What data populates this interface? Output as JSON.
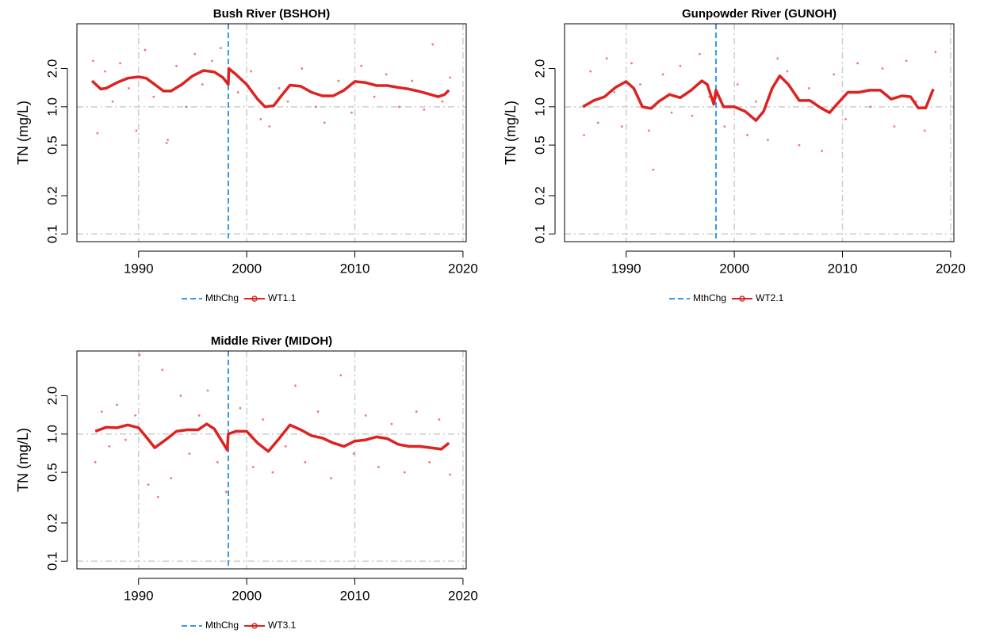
{
  "chart_data": [
    {
      "type": "line",
      "title": "Bush River (BSHOH)",
      "y_label": "TN (mg/L)",
      "log_y": true,
      "xlim": [
        1984.3,
        2020.3
      ],
      "ylim": [
        0.087,
        4.5
      ],
      "xticks": [
        1990,
        2000,
        2010,
        2020
      ],
      "yticks": [
        0.1,
        0.2,
        0.5,
        {
          "value": 1,
          "label": "1.0"
        },
        {
          "value": 2,
          "label": "2.0"
        }
      ],
      "x_grid": true,
      "y_grid": [
        0.1,
        1
      ],
      "series": [
        {
          "name": "MthChg",
          "color": "#3399ee",
          "style": "vline",
          "x": [
            1998.3
          ]
        },
        {
          "name": "WT1.1",
          "color": "#dd2222",
          "x": [
            1985.7,
            1986.5,
            1987,
            1988,
            1989,
            1990,
            1990.7,
            1991.5,
            1992.3,
            1993,
            1994,
            1995,
            1996,
            1997,
            1997.8,
            1998.3,
            1998.35,
            1999,
            2000,
            2001,
            2001.7,
            2002.5,
            2003.3,
            2004,
            2005,
            2006,
            2007,
            2008,
            2009,
            2010,
            2011,
            2012,
            2013,
            2014,
            2015,
            2016,
            2017,
            2017.7,
            2018.3,
            2018.7
          ],
          "values": [
            1.6,
            1.38,
            1.4,
            1.55,
            1.68,
            1.72,
            1.68,
            1.5,
            1.33,
            1.33,
            1.5,
            1.75,
            1.93,
            1.88,
            1.7,
            1.5,
            2.0,
            1.8,
            1.5,
            1.15,
            1.0,
            1.02,
            1.25,
            1.48,
            1.45,
            1.3,
            1.22,
            1.22,
            1.35,
            1.58,
            1.55,
            1.47,
            1.47,
            1.42,
            1.38,
            1.32,
            1.25,
            1.2,
            1.25,
            1.35
          ],
          "points": {
            "x": [
              1985.8,
              1986.2,
              1986.9,
              1987.6,
              1988.3,
              1989.1,
              1989.8,
              1990.6,
              1991.4,
              1992.6,
              1992.7,
              1993.5,
              1994.4,
              1995.2,
              1995.9,
              1996.8,
              1997.6,
              1999.2,
              2000.4,
              2001.3,
              2002.1,
              2003.0,
              2003.8,
              2005.1,
              2006.4,
              2007.2,
              2008.5,
              2009.7,
              2010.6,
              2011.8,
              2012.9,
              2014.1,
              2015.3,
              2016.4,
              2017.2,
              2018.1,
              2018.8
            ],
            "values": [
              2.3,
              0.62,
              1.9,
              1.1,
              2.2,
              1.4,
              0.65,
              2.8,
              1.2,
              0.52,
              0.55,
              2.1,
              1.0,
              2.6,
              1.5,
              2.3,
              2.9,
              1.3,
              1.9,
              0.8,
              0.7,
              1.4,
              1.1,
              2.0,
              1.0,
              0.75,
              1.6,
              0.9,
              2.1,
              1.2,
              1.8,
              1.0,
              1.6,
              0.95,
              3.1,
              1.1,
              1.7
            ]
          }
        }
      ]
    },
    {
      "type": "line",
      "title": "Gunpowder River (GUNOH)",
      "y_label": "TN (mg/L)",
      "log_y": true,
      "xlim": [
        1984.3,
        2020.3
      ],
      "ylim": [
        0.087,
        4.5
      ],
      "xticks": [
        1990,
        2000,
        2010,
        2020
      ],
      "yticks": [
        0.1,
        0.2,
        0.5,
        {
          "value": 1,
          "label": "1.0"
        },
        {
          "value": 2,
          "label": "2.0"
        }
      ],
      "x_grid": true,
      "y_grid": [
        0.1,
        1
      ],
      "series": [
        {
          "name": "MthChg",
          "color": "#3399ee",
          "style": "vline",
          "x": [
            1998.3
          ]
        },
        {
          "name": "WT2.1",
          "color": "#dd2222",
          "x": [
            1986,
            1987,
            1988,
            1989,
            1990,
            1990.7,
            1991.5,
            1992.3,
            1993,
            1994,
            1995,
            1996,
            1997,
            1997.5,
            1998.1,
            1998.3,
            1999,
            2000,
            2001,
            2002,
            2002.7,
            2003.5,
            2004.2,
            2005,
            2006,
            2007,
            2008,
            2008.8,
            2009.5,
            2010.5,
            2011.5,
            2012.5,
            2013.5,
            2014.5,
            2015.5,
            2016.3,
            2017,
            2017.7,
            2018.4
          ],
          "values": [
            1.0,
            1.12,
            1.2,
            1.42,
            1.58,
            1.4,
            1.0,
            0.97,
            1.1,
            1.25,
            1.18,
            1.35,
            1.6,
            1.5,
            1.05,
            1.35,
            1.0,
            1.0,
            0.92,
            0.78,
            0.92,
            1.4,
            1.75,
            1.5,
            1.12,
            1.12,
            0.98,
            0.9,
            1.05,
            1.3,
            1.3,
            1.35,
            1.35,
            1.15,
            1.22,
            1.2,
            0.98,
            0.98,
            1.38
          ],
          "points": {
            "x": [
              1986.1,
              1986.7,
              1987.4,
              1988.2,
              1988.9,
              1989.6,
              1990.5,
              1991.3,
              1992.1,
              1992.5,
              1993.4,
              1994.2,
              1995.0,
              1996.1,
              1996.8,
              1997.7,
              1999.1,
              2000.3,
              2001.2,
              2002.0,
              2003.1,
              2004.0,
              2004.9,
              2006.0,
              2006.9,
              2008.1,
              2009.2,
              2010.3,
              2011.4,
              2012.6,
              2013.7,
              2014.8,
              2015.9,
              2016.8,
              2017.6,
              2018.6
            ],
            "values": [
              0.6,
              1.9,
              0.75,
              2.4,
              1.3,
              0.7,
              2.2,
              1.5,
              0.65,
              0.32,
              1.8,
              0.9,
              2.1,
              0.85,
              2.6,
              1.2,
              0.7,
              1.5,
              0.6,
              1.1,
              0.55,
              2.4,
              1.9,
              0.5,
              1.4,
              0.45,
              1.8,
              0.8,
              2.2,
              1.0,
              2.0,
              0.7,
              2.3,
              1.1,
              0.65,
              2.7
            ]
          }
        }
      ]
    },
    {
      "type": "line",
      "title": "Middle River (MIDOH)",
      "y_label": "TN (mg/L)",
      "log_y": true,
      "xlim": [
        1984.3,
        2020.3
      ],
      "ylim": [
        0.087,
        4.5
      ],
      "xticks": [
        1990,
        2000,
        2010,
        2020
      ],
      "yticks": [
        0.1,
        0.2,
        0.5,
        {
          "value": 1,
          "label": "1.0"
        },
        {
          "value": 2,
          "label": "2.0"
        }
      ],
      "x_grid": true,
      "y_grid": [
        0.1,
        1
      ],
      "series": [
        {
          "name": "MthChg",
          "color": "#3399ee",
          "style": "vline",
          "x": [
            1998.3
          ]
        },
        {
          "name": "WT3.1",
          "color": "#dd2222",
          "x": [
            1986,
            1987,
            1988,
            1989,
            1990,
            1990.7,
            1991.5,
            1992.5,
            1993.5,
            1994.5,
            1995.5,
            1996.3,
            1997,
            1998.2,
            1998.3,
            1999,
            2000,
            2001,
            2002,
            2003,
            2004,
            2005,
            2006,
            2007,
            2008,
            2009,
            2010,
            2011,
            2012,
            2013,
            2014,
            2015,
            2016,
            2017,
            2018,
            2018.7
          ],
          "values": [
            1.05,
            1.13,
            1.12,
            1.18,
            1.12,
            0.95,
            0.78,
            0.9,
            1.05,
            1.08,
            1.08,
            1.2,
            1.1,
            0.75,
            1.0,
            1.05,
            1.05,
            0.85,
            0.73,
            0.92,
            1.18,
            1.08,
            0.97,
            0.93,
            0.85,
            0.8,
            0.88,
            0.9,
            0.95,
            0.92,
            0.83,
            0.8,
            0.8,
            0.78,
            0.76,
            0.85
          ],
          "points": {
            "x": [
              1986.0,
              1986.6,
              1987.3,
              1988.0,
              1988.8,
              1989.7,
              1990.1,
              1990.9,
              1991.8,
              1992.2,
              1993.0,
              1993.9,
              1994.7,
              1995.6,
              1996.4,
              1997.3,
              1998.1,
              1999.4,
              2000.6,
              2001.5,
              2002.4,
              2003.6,
              2004.5,
              2005.4,
              2006.6,
              2007.8,
              2008.7,
              2009.9,
              2011.0,
              2012.2,
              2013.4,
              2014.6,
              2015.7,
              2016.9,
              2017.8,
              2018.8
            ],
            "values": [
              0.6,
              1.5,
              0.8,
              1.7,
              0.9,
              1.4,
              4.2,
              0.4,
              0.32,
              3.2,
              0.45,
              2.0,
              0.7,
              1.4,
              2.2,
              0.6,
              0.35,
              1.6,
              0.55,
              1.3,
              0.5,
              0.8,
              2.4,
              0.6,
              1.5,
              0.45,
              2.9,
              0.7,
              1.4,
              0.55,
              1.2,
              0.5,
              1.5,
              0.6,
              1.3,
              0.48
            ]
          }
        }
      ]
    }
  ]
}
